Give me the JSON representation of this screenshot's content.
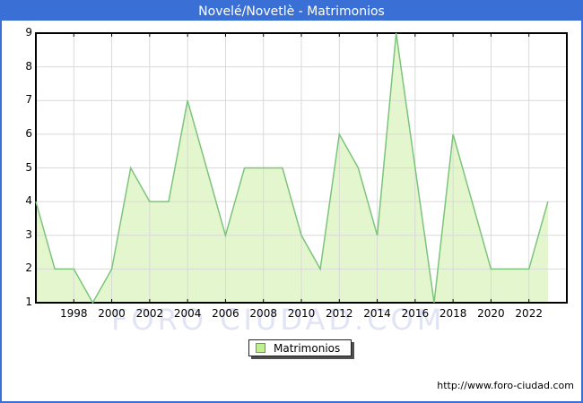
{
  "window": {
    "title": "Novelé/Novetlè - Matrimonios"
  },
  "chart_data": {
    "type": "area",
    "title": "Novelé/Novetlè - Matrimonios",
    "grid": true,
    "legend_position": "bottom-center",
    "x_range": [
      1996,
      2024
    ],
    "y_range": [
      1,
      9
    ],
    "x_ticks": [
      1998,
      2000,
      2002,
      2004,
      2006,
      2008,
      2010,
      2012,
      2014,
      2016,
      2018,
      2020,
      2022
    ],
    "y_ticks": [
      1,
      2,
      3,
      4,
      5,
      6,
      7,
      8,
      9
    ],
    "series": [
      {
        "name": "Matrimonios",
        "x": [
          1996,
          1997,
          1998,
          1999,
          2000,
          2001,
          2002,
          2003,
          2004,
          2005,
          2006,
          2007,
          2008,
          2009,
          2010,
          2011,
          2012,
          2013,
          2014,
          2015,
          2016,
          2017,
          2018,
          2019,
          2020,
          2021,
          2022,
          2023
        ],
        "values": [
          4,
          2,
          2,
          1,
          2,
          5,
          4,
          4,
          7,
          5,
          3,
          5,
          5,
          5,
          3,
          2,
          6,
          5,
          3,
          9,
          5,
          1,
          6,
          4,
          2,
          2,
          2,
          4
        ]
      }
    ],
    "colors": {
      "line": "#7cc47c",
      "fill": "#e4f6cd"
    }
  },
  "legend": {
    "label": "Matrimonios",
    "swatch_fill": "#bef08e",
    "swatch_border": "#70945c"
  },
  "watermark": {
    "text": "FORO CIUDAD.COM"
  },
  "footer": {
    "url": "http://www.foro-ciudad.com"
  },
  "colors": {
    "titlebar_bg": "#3a70d6",
    "titlebar_fg": "#ffffff",
    "frame_border": "#3a70d6",
    "grid": "#d9d9d9",
    "axis": "#000000",
    "watermark_color": "#e0e4f4"
  }
}
